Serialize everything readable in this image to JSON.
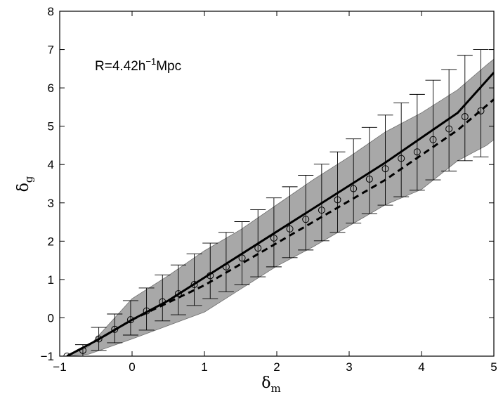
{
  "chart_data": {
    "type": "line",
    "xlim": [
      -1,
      5
    ],
    "ylim": [
      -1,
      8
    ],
    "xticks": [
      -1,
      0,
      1,
      2,
      3,
      4,
      5
    ],
    "yticks": [
      -1,
      0,
      1,
      2,
      3,
      4,
      5,
      6,
      7,
      8
    ],
    "xlabel": {
      "symbol": "δ",
      "subscript": "m"
    },
    "ylabel": {
      "symbol": "δ",
      "subscript": "g"
    },
    "annotation": {
      "text": "R=4.42h",
      "sup": "−1",
      "tail": "Mpc"
    },
    "grid": false,
    "legend": "none",
    "colors": {
      "band": "#a8a8a8",
      "line": "#000000"
    },
    "band": {
      "x": [
        -0.9,
        -0.6,
        0.0,
        0.5,
        1.0,
        1.5,
        2.0,
        2.5,
        3.0,
        3.5,
        4.0,
        4.5,
        4.9,
        5.0
      ],
      "lower": [
        -1.0,
        -0.95,
        -0.55,
        -0.2,
        0.15,
        0.75,
        1.35,
        1.85,
        2.4,
        2.95,
        3.35,
        4.1,
        4.5,
        4.65
      ],
      "upper": [
        -1.0,
        -0.75,
        0.5,
        1.1,
        1.75,
        2.3,
        2.95,
        3.6,
        4.2,
        4.85,
        5.35,
        5.95,
        6.6,
        6.75
      ]
    },
    "series": [
      {
        "style": "solid",
        "x": [
          -0.9,
          -0.5,
          0.0,
          0.5,
          1.0,
          1.5,
          2.0,
          2.5,
          3.0,
          3.5,
          4.0,
          4.5,
          5.0
        ],
        "y": [
          -1.0,
          -0.6,
          -0.05,
          0.45,
          1.05,
          1.65,
          2.25,
          2.85,
          3.45,
          4.05,
          4.7,
          5.35,
          6.4
        ]
      },
      {
        "style": "dashed",
        "x": [
          -0.9,
          -0.5,
          0.0,
          0.5,
          1.0,
          1.5,
          2.0,
          2.5,
          3.0,
          3.5,
          4.0,
          4.5,
          5.0
        ],
        "y": [
          -1.0,
          -0.6,
          -0.05,
          0.4,
          0.85,
          1.4,
          1.95,
          2.5,
          3.05,
          3.6,
          4.25,
          4.9,
          5.7
        ]
      }
    ],
    "points": {
      "marker": "circle",
      "x": [
        -0.9,
        -0.68,
        -0.46,
        -0.24,
        -0.02,
        0.2,
        0.42,
        0.64,
        0.86,
        1.08,
        1.3,
        1.52,
        1.74,
        1.96,
        2.18,
        2.4,
        2.62,
        2.84,
        3.06,
        3.28,
        3.5,
        3.72,
        3.94,
        4.16,
        4.38,
        4.6,
        4.82
      ],
      "y": [
        -1.0,
        -0.85,
        -0.55,
        -0.3,
        -0.05,
        0.18,
        0.42,
        0.63,
        0.87,
        1.1,
        1.33,
        1.56,
        1.82,
        2.08,
        2.32,
        2.57,
        2.81,
        3.08,
        3.37,
        3.62,
        3.89,
        4.16,
        4.33,
        4.65,
        4.93,
        5.25,
        5.4
      ],
      "err_low": [
        0.0,
        0.15,
        0.3,
        0.35,
        0.4,
        0.5,
        0.5,
        0.55,
        0.55,
        0.6,
        0.65,
        0.7,
        0.75,
        0.75,
        0.75,
        0.8,
        0.8,
        0.85,
        0.9,
        0.9,
        0.95,
        1.0,
        1.0,
        1.05,
        1.1,
        1.15,
        1.2
      ],
      "err_high": [
        0.0,
        0.15,
        0.3,
        0.4,
        0.5,
        0.6,
        0.7,
        0.75,
        0.8,
        0.85,
        0.9,
        0.95,
        1.0,
        1.05,
        1.1,
        1.15,
        1.2,
        1.25,
        1.3,
        1.35,
        1.4,
        1.45,
        1.5,
        1.55,
        1.55,
        1.6,
        1.6
      ]
    }
  }
}
